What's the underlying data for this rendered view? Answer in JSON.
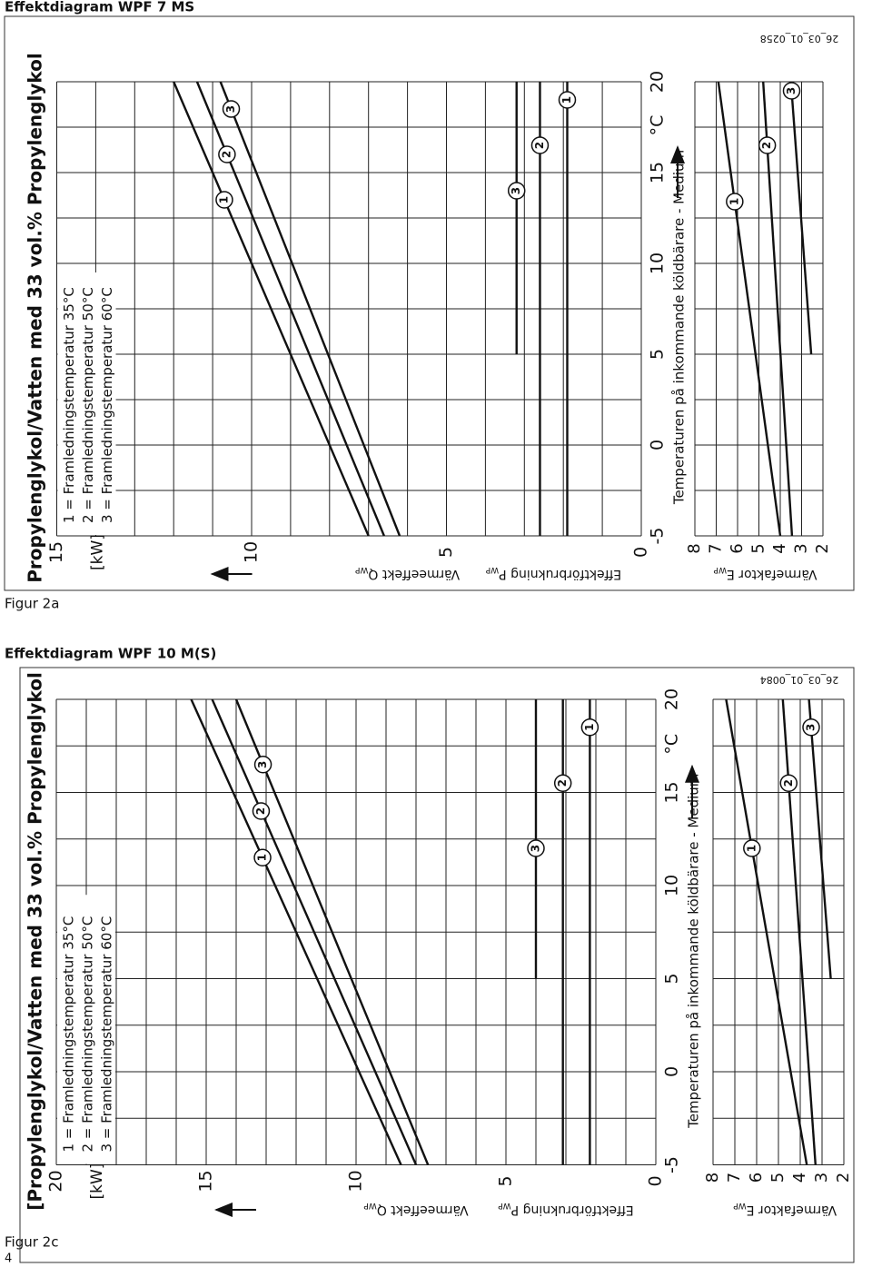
{
  "page": {
    "number": "4"
  },
  "figures": [
    {
      "heading": "Effektdiagram WPF 7 MS",
      "caption": "Figur 2a",
      "title": "Propylenglykol/Vatten med 33 vol.% Propylenglykol",
      "legend": [
        "1 = Framledningstemperatur 35°C",
        "2 = Framledningstemperatur 50°C",
        "3 = Framledningstemperatur 60°C"
      ],
      "unit": "[kW]",
      "power_ticks": [
        "15",
        "10",
        "5",
        "0"
      ],
      "temp_ticks": [
        "-5",
        "0",
        "5",
        "10",
        "15",
        "20"
      ],
      "temp_unit": "°C",
      "cop_ticks": [
        "8",
        "7",
        "6",
        "5",
        "4",
        "3",
        "2"
      ],
      "heat_label": "Värmeeffekt Q",
      "heat_sub": "WP",
      "power_label": "Effektförbrukning P",
      "power_sub": "WP",
      "cop_label": "Värmefaktor E",
      "cop_sub": "WP",
      "x_label": "Temperaturen på inkommande köldbärare - Medium",
      "curve_labels": [
        "1",
        "2",
        "3"
      ],
      "code": "26_03_01_0258",
      "heat": [
        {
          "from": [
            -5,
            7.0
          ],
          "to": [
            20,
            12.0
          ]
        },
        {
          "from": [
            -5,
            6.6
          ],
          "to": [
            20,
            11.4
          ]
        },
        {
          "from": [
            -5,
            6.2
          ],
          "to": [
            20,
            10.8
          ]
        }
      ],
      "power": [
        {
          "from": [
            -5,
            1.9
          ],
          "to": [
            20,
            1.9
          ]
        },
        {
          "from": [
            -5,
            2.6
          ],
          "to": [
            20,
            2.6
          ]
        },
        {
          "from": [
            5,
            3.2
          ],
          "to": [
            20,
            3.2
          ]
        }
      ],
      "cop": [
        {
          "from": [
            -5,
            4.0
          ],
          "to": [
            20,
            6.9
          ]
        },
        {
          "from": [
            -5,
            3.45
          ],
          "to": [
            20,
            4.8
          ]
        },
        {
          "from": [
            5,
            2.55
          ],
          "to": [
            20,
            3.5
          ]
        }
      ]
    },
    {
      "heading": "Effektdiagram WPF 10 M(S)",
      "caption": "Figur 2c",
      "title": "[Propylenglykol/Vatten med 33 vol.% Propylenglykol",
      "legend": [
        "1 = Framledningstemperatur 35°C",
        "2 = Framledningstemperatur 50°C",
        "3 = Framledningstemperatur 60°C"
      ],
      "unit": "[kW]",
      "power_ticks": [
        "20",
        "15",
        "10",
        "5",
        "0"
      ],
      "temp_ticks": [
        "-5",
        "0",
        "5",
        "10",
        "15",
        "20"
      ],
      "temp_unit": "°C",
      "cop_ticks": [
        "8",
        "7",
        "6",
        "5",
        "4",
        "3",
        "2"
      ],
      "heat_label": "Värmeeffekt Q",
      "heat_sub": "WP",
      "power_label": "Effektförbrukning P",
      "power_sub": "WP",
      "cop_label": "Värmefaktor E",
      "cop_sub": "WP",
      "x_label": "Temperaturen på inkommande köldbärare - Medium",
      "curve_labels": [
        "1",
        "2",
        "3"
      ],
      "code": "26_03_01_0084",
      "heat": [
        {
          "from": [
            -5,
            8.5
          ],
          "to": [
            20,
            15.5
          ]
        },
        {
          "from": [
            -5,
            8.0
          ],
          "to": [
            20,
            14.8
          ]
        },
        {
          "from": [
            -5,
            7.6
          ],
          "to": [
            20,
            14.0
          ]
        }
      ],
      "power": [
        {
          "from": [
            -5,
            2.2
          ],
          "to": [
            20,
            2.2
          ]
        },
        {
          "from": [
            -5,
            3.1
          ],
          "to": [
            20,
            3.1
          ]
        },
        {
          "from": [
            5,
            4.0
          ],
          "to": [
            20,
            4.0
          ]
        }
      ],
      "cop": [
        {
          "from": [
            -5,
            3.7
          ],
          "to": [
            20,
            7.4
          ]
        },
        {
          "from": [
            -5,
            3.3
          ],
          "to": [
            20,
            4.8
          ]
        },
        {
          "from": [
            5,
            2.6
          ],
          "to": [
            20,
            3.6
          ]
        }
      ]
    }
  ]
}
